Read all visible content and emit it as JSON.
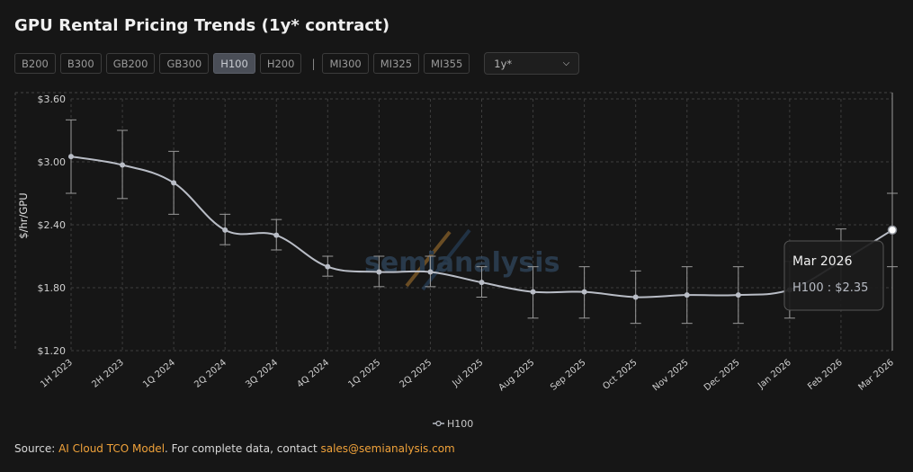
{
  "title": "GPU Rental Pricing Trends (1y* contract)",
  "gpu_buttons": [
    "B200",
    "B300",
    "GB200",
    "GB300",
    "H100",
    "H200",
    "MI300",
    "MI325",
    "MI355"
  ],
  "active_gpu": "H100",
  "separator": "|",
  "contract_select": {
    "value": "1y*"
  },
  "watermark": "semianalysis",
  "tooltip": {
    "title": "Mar 2026",
    "text": "H100 : $2.35"
  },
  "source": {
    "prefix": "Source: ",
    "link1": "AI Cloud TCO Model",
    "middle": ". For complete data, contact ",
    "link2": "sales@semianalysis.com"
  },
  "colors": {
    "background": "#161616",
    "line": "#b9bdc6",
    "accent": "#f0a23a"
  },
  "chart_data": {
    "type": "line",
    "title": "",
    "xlabel": "",
    "ylabel": "$/hr/GPU",
    "categories": [
      "1H 2023",
      "2H 2023",
      "1Q 2024",
      "2Q 2024",
      "3Q 2024",
      "4Q 2024",
      "1Q 2025",
      "2Q 2025",
      "Jul 2025",
      "Aug 2025",
      "Sep 2025",
      "Oct 2025",
      "Nov 2025",
      "Dec 2025",
      "Jan 2026",
      "Feb 2026",
      "Mar 2026"
    ],
    "y_ticks": [
      "$1.20",
      "$1.80",
      "$2.40",
      "$3.00",
      "$3.60"
    ],
    "ylim": [
      1.2,
      3.6
    ],
    "grid": true,
    "legend_position": "bottom-center",
    "series": [
      {
        "name": "H100",
        "values": [
          3.05,
          2.97,
          2.8,
          2.35,
          2.3,
          2.0,
          1.95,
          1.95,
          1.85,
          1.76,
          1.76,
          1.71,
          1.73,
          1.73,
          1.78,
          2.05,
          2.35
        ],
        "low": [
          2.7,
          2.65,
          2.5,
          2.21,
          2.16,
          1.91,
          1.81,
          1.81,
          1.71,
          1.51,
          1.51,
          1.46,
          1.46,
          1.46,
          1.51,
          1.8,
          2.0
        ],
        "high": [
          3.4,
          3.3,
          3.1,
          2.5,
          2.45,
          2.1,
          2.1,
          2.1,
          2.0,
          2.0,
          2.0,
          1.96,
          2.0,
          2.0,
          2.05,
          2.36,
          2.7
        ]
      }
    ]
  }
}
